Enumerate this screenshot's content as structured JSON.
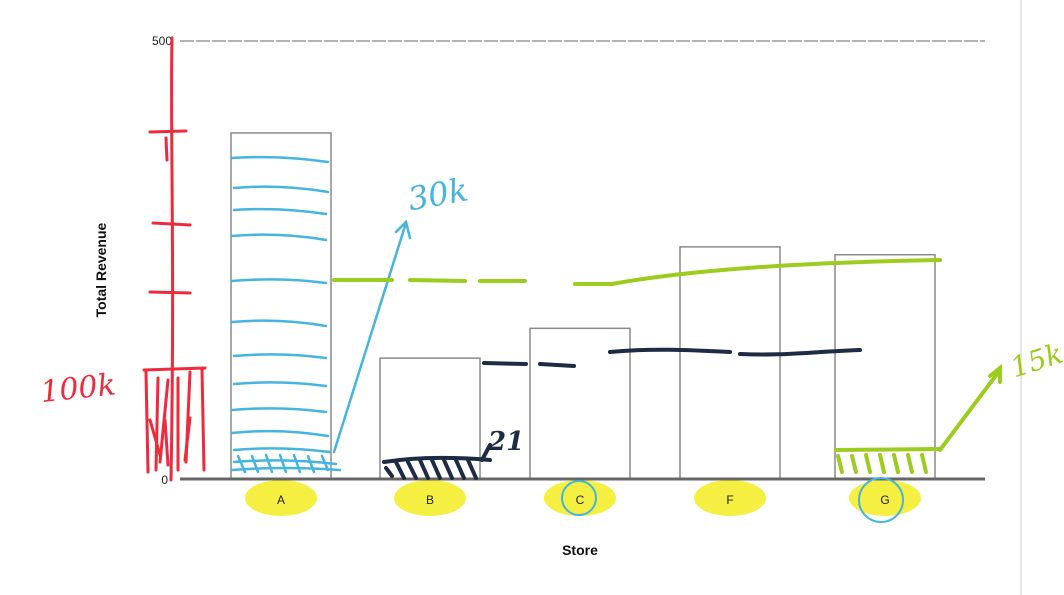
{
  "chart_data": {
    "type": "bar",
    "xlabel": "Store",
    "ylabel": "Total Revenue",
    "categories": [
      "A",
      "B",
      "C",
      "F",
      "G"
    ],
    "values": [
      395,
      138,
      172,
      265,
      256
    ],
    "ylim": [
      0,
      500
    ],
    "ytick_labels": [
      "0",
      "500"
    ],
    "grid": "top line at 500",
    "legend": "none"
  },
  "annotations": {
    "red_scale_label": "100k",
    "blue_label": "30k",
    "navy_label": "21",
    "green_label": "15k",
    "colors": {
      "red": "#ee2a3c",
      "blue": "#46b4e0",
      "navy": "#1e2b44",
      "green": "#9ccc1e",
      "yellow": "#f2ec1e"
    }
  }
}
